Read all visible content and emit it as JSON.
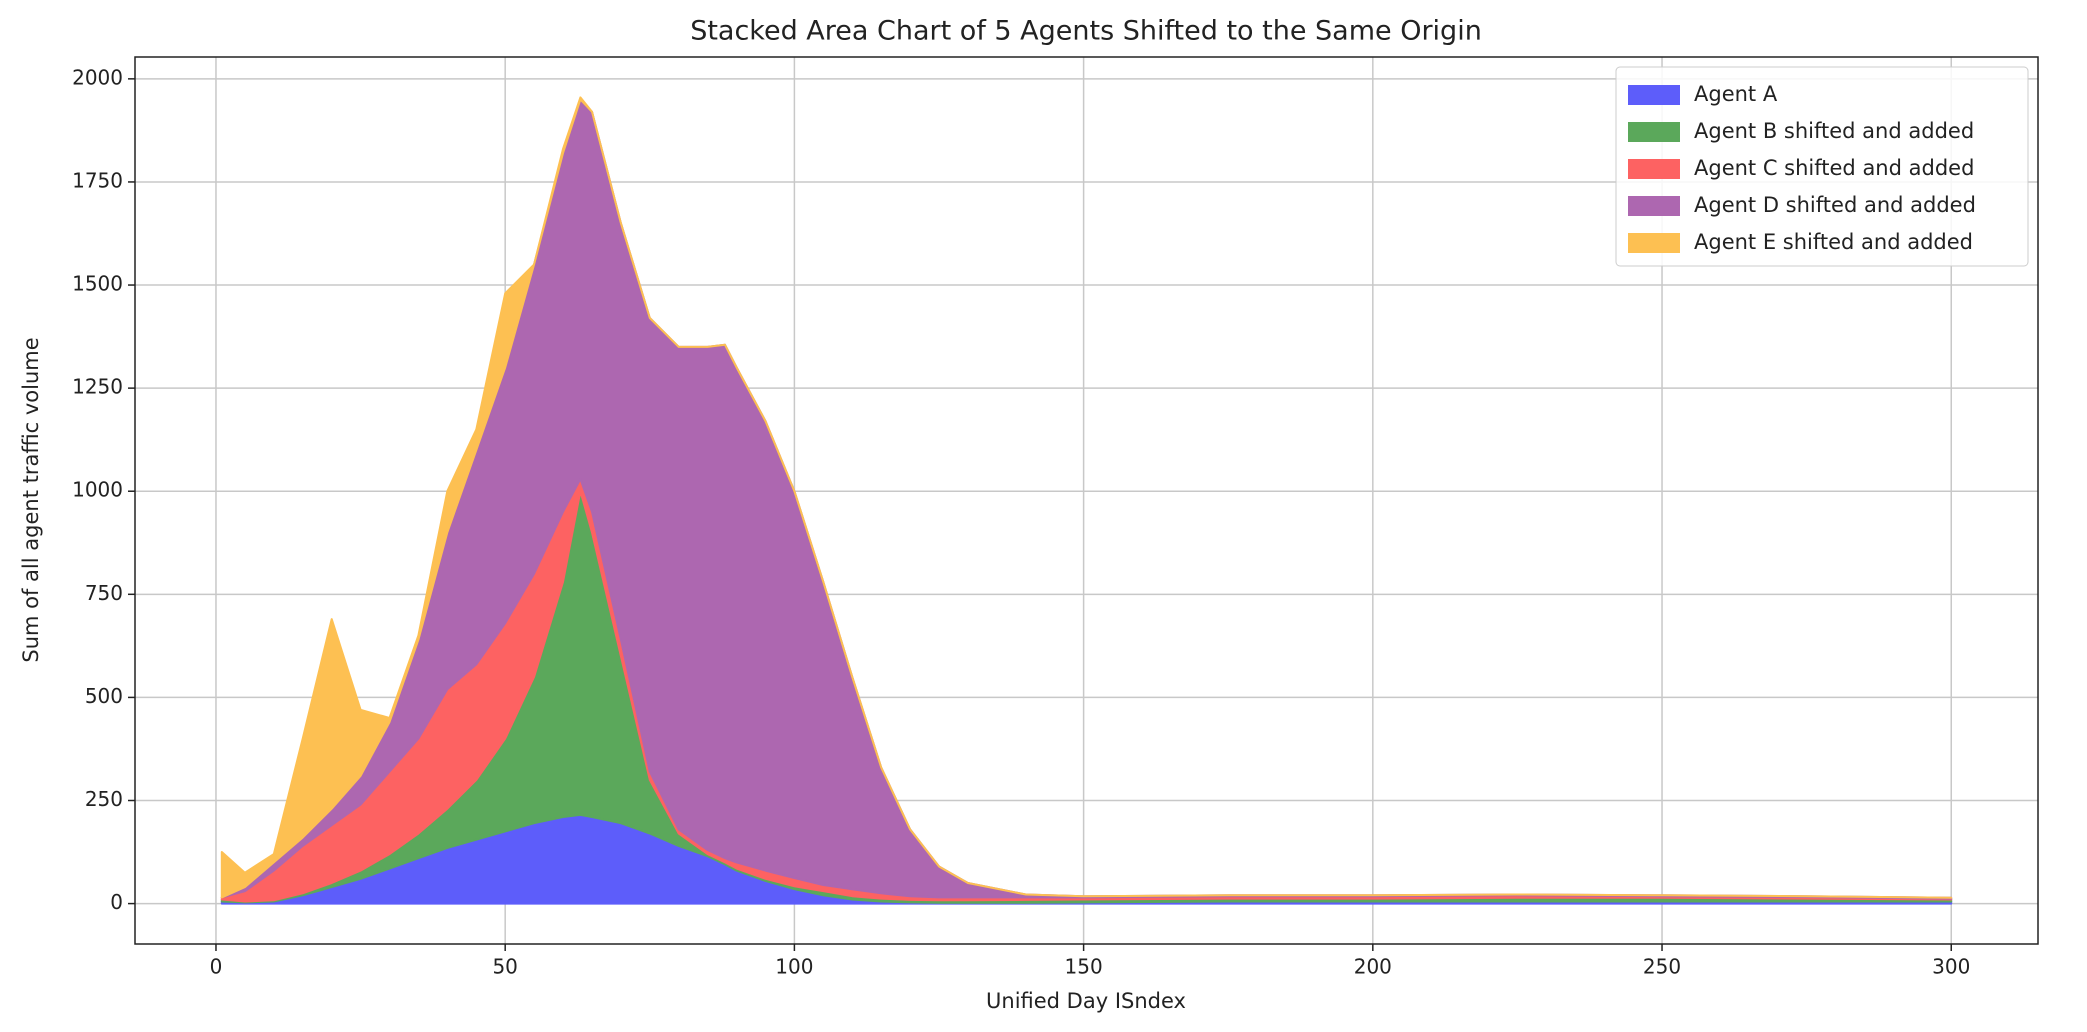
{
  "chart_data": {
    "type": "stacked_area",
    "title": "Stacked Area Chart of 5 Agents Shifted to the Same Origin",
    "xlabel": "Unified Day ISndex",
    "ylabel": "Sum of all agent traffic volume",
    "x": [
      1,
      5,
      10,
      15,
      20,
      25,
      30,
      35,
      40,
      45,
      50,
      55,
      60,
      63,
      65,
      70,
      75,
      80,
      85,
      88,
      90,
      95,
      100,
      105,
      110,
      115,
      120,
      125,
      130,
      140,
      150,
      175,
      200,
      225,
      250,
      275,
      300
    ],
    "series": [
      {
        "name": "Agent A",
        "color": "#5d5dfa",
        "values": [
          5,
          3,
          5,
          20,
          40,
          60,
          85,
          110,
          135,
          155,
          175,
          195,
          210,
          215,
          210,
          195,
          170,
          140,
          115,
          95,
          80,
          55,
          35,
          20,
          10,
          5,
          3,
          2,
          2,
          2,
          3,
          5,
          5,
          5,
          5,
          5,
          5
        ]
      },
      {
        "name": "Agent B shifted and added",
        "color": "#5ba85b",
        "values": [
          5,
          2,
          3,
          5,
          10,
          20,
          35,
          60,
          95,
          145,
          225,
          355,
          570,
          785,
          690,
          405,
          130,
          30,
          5,
          5,
          5,
          5,
          7,
          10,
          8,
          7,
          6,
          6,
          6,
          7,
          7,
          7,
          7,
          9,
          9,
          7,
          5
        ]
      },
      {
        "name": "Agent C shifted and added",
        "color": "#fd6262",
        "values": [
          5,
          25,
          72,
          115,
          140,
          160,
          200,
          230,
          290,
          280,
          280,
          250,
          170,
          30,
          50,
          40,
          20,
          10,
          10,
          10,
          15,
          20,
          20,
          15,
          17,
          13,
          9,
          7,
          7,
          6,
          5,
          6,
          6,
          6,
          4,
          4,
          2
        ]
      },
      {
        "name": "Agent D shifted and added",
        "color": "#ad67b0",
        "values": [
          0,
          10,
          20,
          20,
          40,
          70,
          120,
          240,
          380,
          520,
          620,
          750,
          870,
          920,
          970,
          1010,
          1100,
          1170,
          1220,
          1245,
          1200,
          1090,
          938,
          735,
          515,
          305,
          162,
          75,
          35,
          7,
          3,
          2,
          2,
          2,
          2,
          2,
          2
        ]
      },
      {
        "name": "Agent E shifted and added",
        "color": "#fdc052",
        "values": [
          110,
          35,
          20,
          240,
          460,
          160,
          10,
          10,
          100,
          50,
          180,
          0,
          10,
          5,
          0,
          0,
          0,
          0,
          0,
          0,
          0,
          0,
          0,
          0,
          0,
          0,
          0,
          0,
          0,
          0,
          0,
          0,
          0,
          0,
          0,
          0,
          0
        ]
      }
    ],
    "xlim": [
      -14,
      315
    ],
    "ylim": [
      -98,
      2053
    ],
    "xticks": [
      0,
      50,
      100,
      150,
      200,
      250,
      300
    ],
    "yticks": [
      0,
      250,
      500,
      750,
      1000,
      1250,
      1500,
      1750,
      2000
    ],
    "grid": true,
    "legend": "upper right"
  }
}
